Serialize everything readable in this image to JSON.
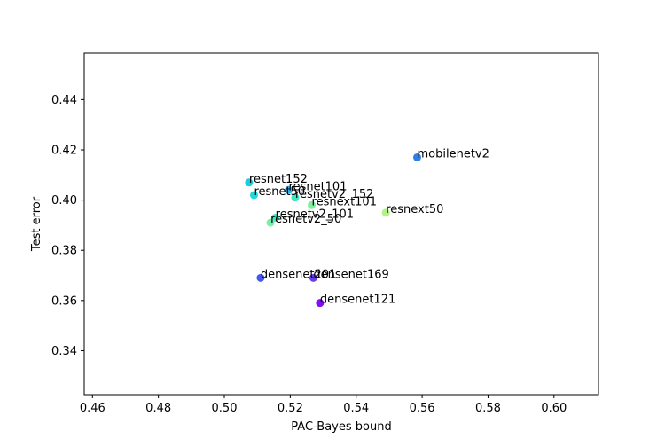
{
  "chart_data": {
    "type": "scatter",
    "xlabel": "PAC-Bayes bound",
    "ylabel": "Test error",
    "xlim": [
      0.4575,
      0.6135
    ],
    "ylim": [
      0.3225,
      0.4585
    ],
    "xticks": [
      "0.46",
      "0.48",
      "0.50",
      "0.52",
      "0.54",
      "0.56",
      "0.58",
      "0.60"
    ],
    "yticks": [
      "0.34",
      "0.36",
      "0.38",
      "0.40",
      "0.42",
      "0.44"
    ],
    "grid": false,
    "points": [
      {
        "label": "mobilenetv2",
        "x": 0.5585,
        "y": 0.417,
        "color": "#2f7fe6"
      },
      {
        "label": "resnet152",
        "x": 0.5075,
        "y": 0.407,
        "color": "#18cce6"
      },
      {
        "label": "resnet101",
        "x": 0.5195,
        "y": 0.404,
        "color": "#2bb1ee"
      },
      {
        "label": "resnet50",
        "x": 0.509,
        "y": 0.402,
        "color": "#22d8d8"
      },
      {
        "label": "resnetv2_152",
        "x": 0.5215,
        "y": 0.401,
        "color": "#3ee8c0"
      },
      {
        "label": "resnext101",
        "x": 0.5265,
        "y": 0.398,
        "color": "#80f0a0"
      },
      {
        "label": "resnext50",
        "x": 0.549,
        "y": 0.395,
        "color": "#b2f088"
      },
      {
        "label": "resnetv2_101",
        "x": 0.5155,
        "y": 0.393,
        "color": "#40e8c8"
      },
      {
        "label": "resnetv2_50",
        "x": 0.514,
        "y": 0.391,
        "color": "#78f0a8"
      },
      {
        "label": "densenet201",
        "x": 0.511,
        "y": 0.369,
        "color": "#4659e8"
      },
      {
        "label": "densenet169",
        "x": 0.527,
        "y": 0.369,
        "color": "#6a3cec"
      },
      {
        "label": "densenet121",
        "x": 0.529,
        "y": 0.359,
        "color": "#7e12f2"
      }
    ]
  }
}
